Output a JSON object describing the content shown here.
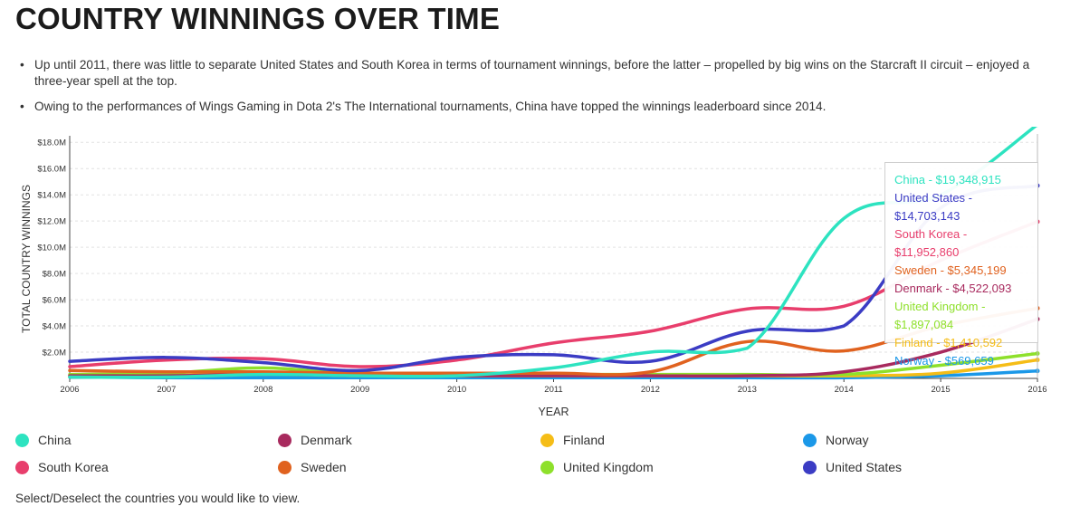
{
  "title": "COUNTRY WINNINGS OVER TIME",
  "bullets": [
    "Up until 2011, there was little to separate United States and South Korea in terms of tournament winnings, before the latter – propelled by big wins on the Starcraft II circuit – enjoyed a three-year spell at the top.",
    "Owing to the performances of Wings Gaming in Dota 2's The International tournaments, China have topped the winnings leaderboard since 2014."
  ],
  "footer": "Select/Deselect the countries you would like to view.",
  "tooltip": {
    "lines": [
      {
        "text": "China - $19,348,915",
        "color": "#2de3c0"
      },
      {
        "text": "United States - $14,703,143",
        "color": "#3b3cc4"
      },
      {
        "text": "South Korea - $11,952,860",
        "color": "#e83e6c"
      },
      {
        "text": "Sweden - $5,345,199",
        "color": "#e0621f"
      },
      {
        "text": "Denmark - $4,522,093",
        "color": "#a82a5e"
      },
      {
        "text": "United Kingdom - $1,897,084",
        "color": "#8ee02b"
      },
      {
        "text": "Finland - $1,410,592",
        "color": "#f5bd17"
      },
      {
        "text": "Norway - $569,659",
        "color": "#1b98e8"
      }
    ]
  },
  "legend": [
    {
      "name": "China",
      "color": "#2de3c0"
    },
    {
      "name": "Denmark",
      "color": "#a82a5e"
    },
    {
      "name": "Finland",
      "color": "#f5bd17"
    },
    {
      "name": "Norway",
      "color": "#1b98e8"
    },
    {
      "name": "South Korea",
      "color": "#e83e6c"
    },
    {
      "name": "Sweden",
      "color": "#e0621f"
    },
    {
      "name": "United Kingdom",
      "color": "#8ee02b"
    },
    {
      "name": "United States",
      "color": "#3b3cc4"
    }
  ],
  "chart_data": {
    "type": "line",
    "xlabel": "YEAR",
    "ylabel": "TOTAL COUNTRY WINNINGS",
    "x": [
      2006,
      2007,
      2008,
      2009,
      2010,
      2011,
      2012,
      2013,
      2014,
      2015,
      2016
    ],
    "xlim": [
      2006,
      2016
    ],
    "ylim": [
      0,
      18.5
    ],
    "yticks": [
      2,
      4,
      6,
      8,
      10,
      12,
      14,
      16,
      18
    ],
    "ytick_labels": [
      "$2.0M",
      "$4.0M",
      "$6.0M",
      "$8.0M",
      "$10.0M",
      "$12.0M",
      "$14.0M",
      "$16.0M",
      "$18.0M"
    ],
    "grid": true,
    "series": [
      {
        "name": "Norway",
        "color": "#1b98e8",
        "values": [
          0.1,
          0.05,
          0.05,
          0.05,
          0.05,
          0.05,
          0.05,
          0.05,
          0.05,
          0.2,
          0.57
        ]
      },
      {
        "name": "Finland",
        "color": "#f5bd17",
        "values": [
          0.2,
          0.2,
          0.4,
          0.2,
          0.2,
          0.2,
          0.2,
          0.2,
          0.2,
          0.4,
          1.41
        ]
      },
      {
        "name": "United Kingdom",
        "color": "#8ee02b",
        "values": [
          0.3,
          0.4,
          0.8,
          0.3,
          0.3,
          0.3,
          0.3,
          0.3,
          0.3,
          1.0,
          1.9
        ]
      },
      {
        "name": "Denmark",
        "color": "#a82a5e",
        "values": [
          0.2,
          0.2,
          0.3,
          0.2,
          0.2,
          0.2,
          0.2,
          0.2,
          0.5,
          2.0,
          4.52
        ]
      },
      {
        "name": "Sweden",
        "color": "#e0621f",
        "values": [
          0.6,
          0.5,
          0.5,
          0.4,
          0.4,
          0.4,
          0.5,
          2.8,
          2.1,
          4.0,
          5.35
        ]
      },
      {
        "name": "South Korea",
        "color": "#e83e6c",
        "values": [
          0.9,
          1.4,
          1.5,
          0.9,
          1.4,
          2.7,
          3.6,
          5.3,
          5.5,
          9.0,
          11.95
        ]
      },
      {
        "name": "United States",
        "color": "#3b3cc4",
        "values": [
          1.3,
          1.6,
          1.2,
          0.6,
          1.6,
          1.8,
          1.3,
          3.6,
          4.0,
          13.0,
          14.7
        ]
      },
      {
        "name": "China",
        "color": "#2de3c0",
        "values": [
          0.1,
          0.1,
          0.3,
          0.2,
          0.2,
          0.8,
          2.0,
          2.3,
          12.2,
          14.0,
          19.35
        ]
      }
    ]
  }
}
